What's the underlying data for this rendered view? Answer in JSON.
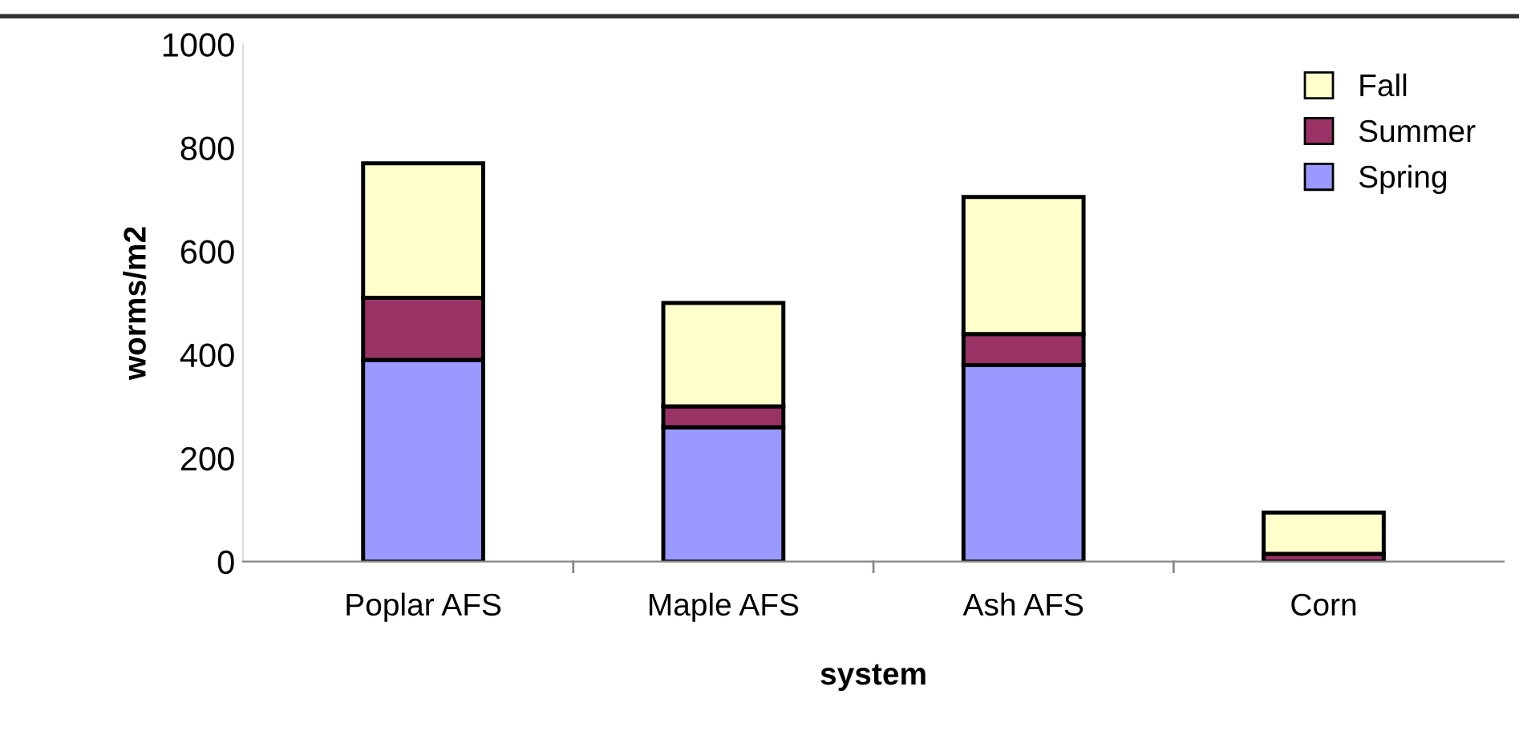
{
  "chart_data": {
    "type": "bar",
    "stacked": true,
    "xlabel": "system",
    "ylabel": "worms/m2",
    "categories": [
      "Poplar AFS",
      "Maple AFS",
      "Ash AFS",
      "Corn"
    ],
    "series": [
      {
        "name": "Spring",
        "color": "#9999ff",
        "values": [
          390,
          260,
          380,
          null
        ]
      },
      {
        "name": "Summer",
        "color": "#993366",
        "values": [
          120,
          40,
          60,
          15
        ]
      },
      {
        "name": "Fall",
        "color": "#ffffcc",
        "values": [
          260,
          200,
          265,
          80
        ]
      }
    ],
    "ylim": [
      0,
      1000
    ],
    "yticks": [
      0,
      200,
      400,
      600,
      800,
      1000
    ],
    "grid": false,
    "legend": "top right"
  }
}
